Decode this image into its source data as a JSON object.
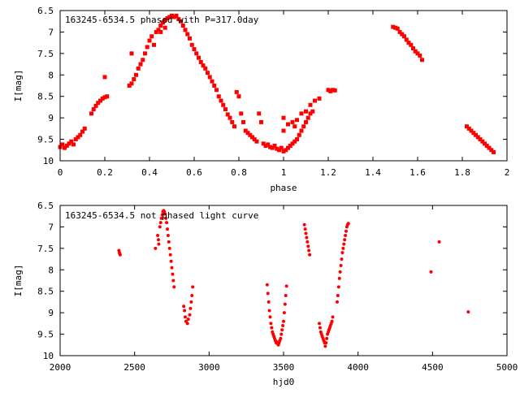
{
  "chart_data": [
    {
      "type": "scatter",
      "title": "163245-6534.5 phased with P=317.0day",
      "xlabel": "phase",
      "ylabel": "I[mag]",
      "xlim": [
        0,
        2
      ],
      "ylim": [
        10,
        6.5
      ],
      "y_inverted": true,
      "grid": false,
      "marker": "cross",
      "color": "#ff0000",
      "xticks": [
        "0",
        "0.2",
        "0.4",
        "0.6",
        "0.8",
        "1",
        "1.2",
        "1.4",
        "1.6",
        "1.8",
        "2"
      ],
      "yticks": [
        "6.5",
        "7",
        "7.5",
        "8",
        "8.5",
        "9",
        "9.5",
        "10"
      ],
      "series": [
        {
          "points": [
            [
              0.0,
              9.68
            ],
            [
              0.01,
              9.62
            ],
            [
              0.02,
              9.7
            ],
            [
              0.03,
              9.65
            ],
            [
              0.04,
              9.6
            ],
            [
              0.05,
              9.55
            ],
            [
              0.06,
              9.62
            ],
            [
              0.07,
              9.5
            ],
            [
              0.08,
              9.45
            ],
            [
              0.09,
              9.4
            ],
            [
              0.1,
              9.32
            ],
            [
              0.11,
              9.25
            ],
            [
              0.14,
              8.9
            ],
            [
              0.15,
              8.8
            ],
            [
              0.16,
              8.72
            ],
            [
              0.17,
              8.65
            ],
            [
              0.18,
              8.6
            ],
            [
              0.19,
              8.55
            ],
            [
              0.2,
              8.52
            ],
            [
              0.21,
              8.5
            ],
            [
              0.2,
              8.05
            ],
            [
              0.31,
              8.25
            ],
            [
              0.32,
              8.2
            ],
            [
              0.33,
              8.1
            ],
            [
              0.34,
              8.0
            ],
            [
              0.35,
              7.85
            ],
            [
              0.36,
              7.75
            ],
            [
              0.37,
              7.65
            ],
            [
              0.38,
              7.5
            ],
            [
              0.32,
              7.5
            ],
            [
              0.39,
              7.35
            ],
            [
              0.4,
              7.2
            ],
            [
              0.41,
              7.1
            ],
            [
              0.42,
              7.3
            ],
            [
              0.43,
              7.0
            ],
            [
              0.44,
              6.95
            ],
            [
              0.45,
              6.85
            ],
            [
              0.46,
              6.78
            ],
            [
              0.47,
              6.72
            ],
            [
              0.48,
              6.68
            ],
            [
              0.49,
              6.65
            ],
            [
              0.5,
              6.62
            ],
            [
              0.51,
              6.65
            ],
            [
              0.52,
              6.62
            ],
            [
              0.53,
              6.7
            ],
            [
              0.54,
              6.75
            ],
            [
              0.45,
              7.0
            ],
            [
              0.47,
              6.9
            ],
            [
              0.55,
              6.85
            ],
            [
              0.56,
              6.95
            ],
            [
              0.57,
              7.05
            ],
            [
              0.58,
              7.15
            ],
            [
              0.59,
              7.3
            ],
            [
              0.6,
              7.4
            ],
            [
              0.61,
              7.5
            ],
            [
              0.62,
              7.6
            ],
            [
              0.63,
              7.7
            ],
            [
              0.64,
              7.78
            ],
            [
              0.65,
              7.85
            ],
            [
              0.66,
              7.95
            ],
            [
              0.67,
              8.05
            ],
            [
              0.68,
              8.15
            ],
            [
              0.69,
              8.25
            ],
            [
              0.7,
              8.35
            ],
            [
              0.71,
              8.5
            ],
            [
              0.72,
              8.6
            ],
            [
              0.73,
              8.7
            ],
            [
              0.74,
              8.8
            ],
            [
              0.75,
              8.92
            ],
            [
              0.76,
              9.0
            ],
            [
              0.77,
              9.1
            ],
            [
              0.78,
              9.2
            ],
            [
              0.79,
              8.4
            ],
            [
              0.8,
              8.5
            ],
            [
              0.81,
              8.9
            ],
            [
              0.82,
              9.1
            ],
            [
              0.83,
              9.3
            ],
            [
              0.84,
              9.35
            ],
            [
              0.85,
              9.4
            ],
            [
              0.86,
              9.45
            ],
            [
              0.87,
              9.5
            ],
            [
              0.88,
              9.55
            ],
            [
              0.89,
              8.9
            ],
            [
              0.9,
              9.1
            ],
            [
              0.91,
              9.6
            ],
            [
              0.92,
              9.65
            ],
            [
              0.93,
              9.62
            ],
            [
              0.94,
              9.68
            ],
            [
              0.95,
              9.7
            ],
            [
              0.96,
              9.65
            ],
            [
              0.97,
              9.72
            ],
            [
              0.98,
              9.75
            ],
            [
              0.99,
              9.7
            ],
            [
              1.0,
              9.78
            ],
            [
              1.01,
              9.75
            ],
            [
              1.02,
              9.7
            ],
            [
              1.03,
              9.65
            ],
            [
              1.04,
              9.6
            ],
            [
              1.05,
              9.55
            ],
            [
              1.06,
              9.5
            ],
            [
              1.07,
              9.4
            ],
            [
              1.08,
              9.3
            ],
            [
              1.09,
              9.2
            ],
            [
              1.1,
              9.1
            ],
            [
              1.11,
              9.0
            ],
            [
              1.12,
              8.9
            ],
            [
              1.0,
              9.3
            ],
            [
              1.02,
              9.15
            ],
            [
              1.04,
              9.1
            ],
            [
              1.06,
              9.05
            ],
            [
              1.08,
              8.9
            ],
            [
              1.1,
              8.85
            ],
            [
              1.12,
              8.7
            ],
            [
              1.14,
              8.6
            ],
            [
              1.16,
              8.55
            ],
            [
              1.13,
              8.85
            ],
            [
              1.0,
              9.0
            ],
            [
              1.05,
              9.2
            ],
            [
              1.2,
              8.35
            ],
            [
              1.21,
              8.38
            ],
            [
              1.22,
              8.35
            ],
            [
              1.23,
              8.36
            ],
            [
              1.49,
              6.88
            ],
            [
              1.5,
              6.9
            ],
            [
              1.51,
              6.92
            ],
            [
              1.52,
              7.0
            ],
            [
              1.53,
              7.05
            ],
            [
              1.54,
              7.1
            ],
            [
              1.55,
              7.18
            ],
            [
              1.56,
              7.25
            ],
            [
              1.57,
              7.3
            ],
            [
              1.58,
              7.38
            ],
            [
              1.59,
              7.45
            ],
            [
              1.6,
              7.5
            ],
            [
              1.61,
              7.55
            ],
            [
              1.62,
              7.65
            ],
            [
              1.82,
              9.2
            ],
            [
              1.83,
              9.25
            ],
            [
              1.84,
              9.3
            ],
            [
              1.85,
              9.35
            ],
            [
              1.86,
              9.4
            ],
            [
              1.87,
              9.45
            ],
            [
              1.88,
              9.5
            ],
            [
              1.89,
              9.55
            ],
            [
              1.9,
              9.6
            ],
            [
              1.91,
              9.65
            ],
            [
              1.92,
              9.7
            ],
            [
              1.93,
              9.75
            ],
            [
              1.94,
              9.8
            ]
          ]
        }
      ]
    },
    {
      "type": "scatter",
      "title": "163245-6534.5 not phased light curve",
      "xlabel": "hjd0",
      "ylabel": "I[mag]",
      "xlim": [
        2000,
        5000
      ],
      "ylim": [
        10,
        6.5
      ],
      "y_inverted": true,
      "grid": false,
      "marker": "dot",
      "color": "#ff0000",
      "xticks": [
        "2000",
        "2500",
        "3000",
        "3500",
        "4000",
        "4500",
        "5000"
      ],
      "yticks": [
        "6.5",
        "7",
        "7.5",
        "8",
        "8.5",
        "9",
        "9.5",
        "10"
      ],
      "series": [
        {
          "points": [
            [
              2395,
              7.55
            ],
            [
              2398,
              7.6
            ],
            [
              2400,
              7.62
            ],
            [
              2403,
              7.65
            ],
            [
              2640,
              7.5
            ],
            [
              2655,
              7.2
            ],
            [
              2660,
              7.3
            ],
            [
              2662,
              7.4
            ],
            [
              2670,
              7.0
            ],
            [
              2675,
              6.9
            ],
            [
              2680,
              6.8
            ],
            [
              2685,
              6.72
            ],
            [
              2690,
              6.65
            ],
            [
              2695,
              6.62
            ],
            [
              2700,
              6.65
            ],
            [
              2705,
              6.7
            ],
            [
              2710,
              6.8
            ],
            [
              2715,
              6.9
            ],
            [
              2720,
              7.05
            ],
            [
              2725,
              7.2
            ],
            [
              2730,
              7.35
            ],
            [
              2735,
              7.5
            ],
            [
              2740,
              7.65
            ],
            [
              2745,
              7.8
            ],
            [
              2750,
              7.95
            ],
            [
              2755,
              8.1
            ],
            [
              2760,
              8.25
            ],
            [
              2765,
              8.4
            ],
            [
              2830,
              8.85
            ],
            [
              2835,
              8.95
            ],
            [
              2840,
              9.1
            ],
            [
              2845,
              9.2
            ],
            [
              2855,
              9.25
            ],
            [
              2860,
              9.15
            ],
            [
              2870,
              9.05
            ],
            [
              2875,
              8.9
            ],
            [
              2880,
              8.75
            ],
            [
              2885,
              8.6
            ],
            [
              2890,
              8.4
            ],
            [
              3390,
              8.35
            ],
            [
              3395,
              8.55
            ],
            [
              3400,
              8.75
            ],
            [
              3405,
              8.95
            ],
            [
              3410,
              9.1
            ],
            [
              3415,
              9.25
            ],
            [
              3420,
              9.35
            ],
            [
              3425,
              9.45
            ],
            [
              3430,
              9.5
            ],
            [
              3435,
              9.55
            ],
            [
              3440,
              9.6
            ],
            [
              3445,
              9.65
            ],
            [
              3450,
              9.7
            ],
            [
              3455,
              9.68
            ],
            [
              3460,
              9.72
            ],
            [
              3465,
              9.75
            ],
            [
              3470,
              9.7
            ],
            [
              3475,
              9.65
            ],
            [
              3480,
              9.6
            ],
            [
              3485,
              9.5
            ],
            [
              3490,
              9.4
            ],
            [
              3495,
              9.3
            ],
            [
              3500,
              9.2
            ],
            [
              3505,
              9.0
            ],
            [
              3510,
              8.8
            ],
            [
              3515,
              8.6
            ],
            [
              3520,
              8.38
            ],
            [
              3640,
              6.95
            ],
            [
              3645,
              7.05
            ],
            [
              3650,
              7.15
            ],
            [
              3655,
              7.25
            ],
            [
              3660,
              7.35
            ],
            [
              3665,
              7.45
            ],
            [
              3670,
              7.55
            ],
            [
              3675,
              7.65
            ],
            [
              3740,
              9.25
            ],
            [
              3745,
              9.35
            ],
            [
              3750,
              9.45
            ],
            [
              3755,
              9.5
            ],
            [
              3760,
              9.55
            ],
            [
              3765,
              9.6
            ],
            [
              3770,
              9.65
            ],
            [
              3775,
              9.7
            ],
            [
              3780,
              9.78
            ],
            [
              3785,
              9.7
            ],
            [
              3790,
              9.6
            ],
            [
              3795,
              9.5
            ],
            [
              3800,
              9.45
            ],
            [
              3805,
              9.4
            ],
            [
              3810,
              9.35
            ],
            [
              3815,
              9.3
            ],
            [
              3820,
              9.25
            ],
            [
              3825,
              9.2
            ],
            [
              3830,
              9.1
            ],
            [
              3860,
              8.75
            ],
            [
              3865,
              8.6
            ],
            [
              3870,
              8.4
            ],
            [
              3875,
              8.2
            ],
            [
              3880,
              8.05
            ],
            [
              3885,
              7.9
            ],
            [
              3890,
              7.75
            ],
            [
              3895,
              7.6
            ],
            [
              3900,
              7.5
            ],
            [
              3905,
              7.4
            ],
            [
              3910,
              7.3
            ],
            [
              3915,
              7.2
            ],
            [
              3920,
              7.1
            ],
            [
              3925,
              7.0
            ],
            [
              3930,
              6.95
            ],
            [
              3935,
              6.92
            ],
            [
              4490,
              8.05
            ],
            [
              4545,
              7.35
            ],
            [
              4740,
              8.98
            ]
          ]
        }
      ]
    }
  ]
}
